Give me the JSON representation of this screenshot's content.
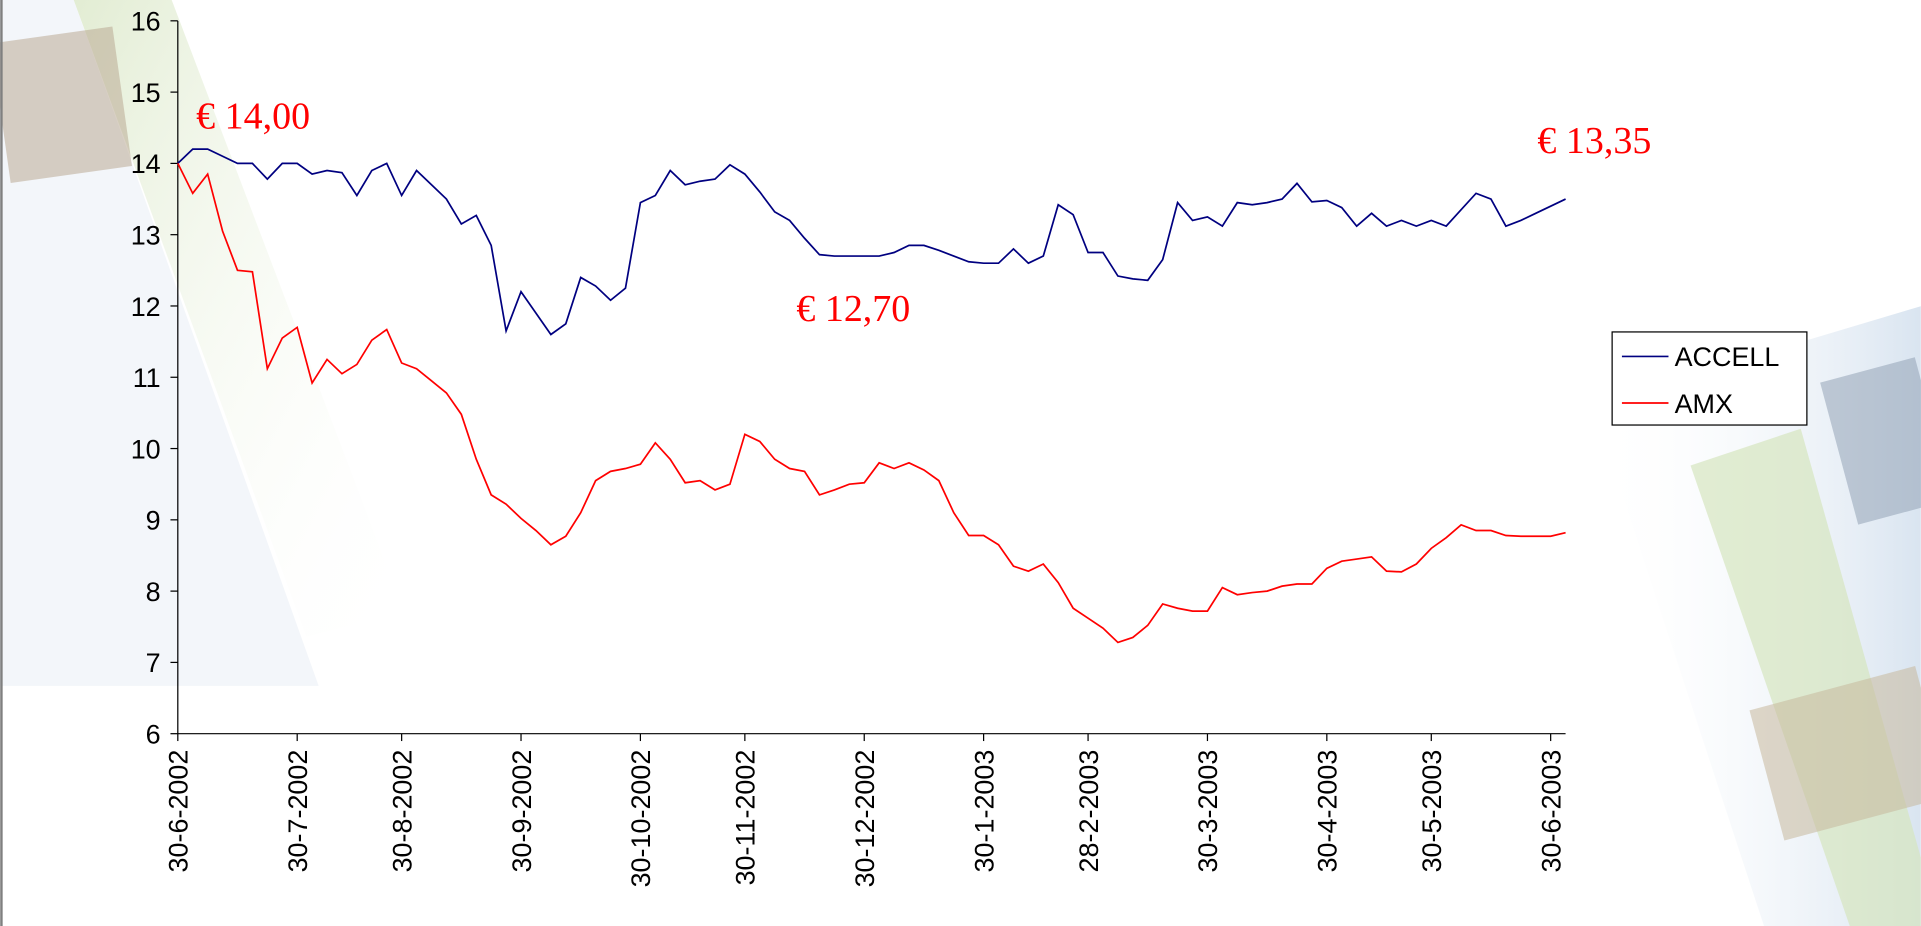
{
  "chart_data": {
    "type": "line",
    "categories": [
      "30-6-2002",
      null,
      null,
      null,
      null,
      null,
      null,
      null,
      "30-7-2002",
      null,
      null,
      null,
      null,
      null,
      null,
      "30-8-2002",
      null,
      null,
      null,
      null,
      null,
      null,
      null,
      "30-9-2002",
      null,
      null,
      null,
      null,
      null,
      null,
      null,
      "30-10-2002",
      null,
      null,
      null,
      null,
      null,
      null,
      "30-11-2002",
      null,
      null,
      null,
      null,
      null,
      null,
      null,
      "30-12-2002",
      null,
      null,
      null,
      null,
      null,
      null,
      null,
      "30-1-2003",
      null,
      null,
      null,
      null,
      null,
      null,
      "28-2-2003",
      null,
      null,
      null,
      null,
      null,
      null,
      null,
      "30-3-2003",
      null,
      null,
      null,
      null,
      null,
      null,
      null,
      "30-4-2003",
      null,
      null,
      null,
      null,
      null,
      null,
      "30-5-2003",
      null,
      null,
      null,
      null,
      null,
      null,
      null,
      "30-6-2003",
      null
    ],
    "series": [
      {
        "name": "ACCELL",
        "color": "#000080",
        "values": [
          14.0,
          14.2,
          14.2,
          14.1,
          14.0,
          14.0,
          13.78,
          14.0,
          14.0,
          13.85,
          13.9,
          13.87,
          13.55,
          13.9,
          14.0,
          13.55,
          13.9,
          13.7,
          13.5,
          13.15,
          13.27,
          12.85,
          11.65,
          12.2,
          11.9,
          11.6,
          11.75,
          12.4,
          12.28,
          12.08,
          12.25,
          13.45,
          13.55,
          13.9,
          13.7,
          13.75,
          13.78,
          13.98,
          13.85,
          13.6,
          13.32,
          13.2,
          12.95,
          12.72,
          12.7,
          12.7,
          12.7,
          12.7,
          12.75,
          12.85,
          12.85,
          12.78,
          12.7,
          12.62,
          12.6,
          12.6,
          12.8,
          12.6,
          12.7,
          13.42,
          13.28,
          12.75,
          12.75,
          12.42,
          12.38,
          12.36,
          12.65,
          13.45,
          13.2,
          13.25,
          13.12,
          13.45,
          13.42,
          13.45,
          13.5,
          13.72,
          13.46,
          13.48,
          13.38,
          13.12,
          13.3,
          13.12,
          13.2,
          13.12,
          13.2,
          13.12,
          13.35,
          13.58,
          13.5,
          13.12,
          13.2,
          13.3,
          13.4,
          13.5
        ]
      },
      {
        "name": "AMX",
        "color": "#ff0000",
        "values": [
          14.0,
          13.58,
          13.85,
          13.05,
          12.5,
          12.48,
          11.12,
          11.55,
          11.7,
          10.92,
          11.25,
          11.05,
          11.18,
          11.52,
          11.67,
          11.2,
          11.12,
          10.95,
          10.78,
          10.48,
          9.85,
          9.35,
          9.22,
          9.02,
          8.85,
          8.65,
          8.77,
          9.1,
          9.55,
          9.68,
          9.72,
          9.78,
          10.08,
          9.85,
          9.52,
          9.55,
          9.42,
          9.5,
          10.2,
          10.1,
          9.85,
          9.72,
          9.68,
          9.35,
          9.42,
          9.5,
          9.52,
          9.8,
          9.72,
          9.8,
          9.7,
          9.55,
          9.1,
          8.78,
          8.78,
          8.65,
          8.35,
          8.28,
          8.38,
          8.12,
          7.76,
          7.62,
          7.48,
          7.28,
          7.35,
          7.52,
          7.82,
          7.76,
          7.72,
          7.72,
          8.05,
          7.95,
          7.98,
          8.0,
          8.07,
          8.1,
          8.1,
          8.32,
          8.42,
          8.45,
          8.48,
          8.28,
          8.27,
          8.38,
          8.6,
          8.75,
          8.93,
          8.85,
          8.85,
          8.78,
          8.77,
          8.77,
          8.77,
          8.82
        ]
      }
    ],
    "ylim": [
      6,
      16
    ],
    "yticks": [
      6,
      7,
      8,
      9,
      10,
      11,
      12,
      13,
      14,
      15,
      16
    ],
    "annotations": [
      "€ 14,00",
      "€ 12,70",
      "€ 13,35"
    ],
    "legend": "right"
  }
}
